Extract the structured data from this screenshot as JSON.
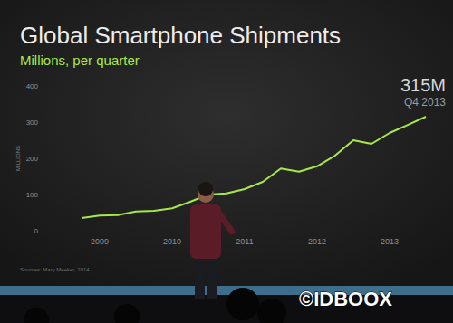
{
  "chart_data": {
    "type": "line",
    "title": "Global Smartphone Shipments",
    "subtitle": "Millions, per quarter",
    "y_label": "MILLIONS",
    "categories": [
      null,
      "2009",
      null,
      null,
      null,
      "2010",
      null,
      null,
      null,
      "2011",
      null,
      null,
      null,
      "2012",
      null,
      null,
      null,
      "2013",
      null,
      null
    ],
    "values": [
      35,
      42,
      43,
      53,
      55,
      62,
      80,
      100,
      103,
      115,
      135,
      172,
      163,
      178,
      208,
      250,
      240,
      270,
      292,
      315
    ],
    "color": "#a6e84a",
    "ylim": [
      0,
      400
    ],
    "yticks": [
      0,
      100,
      200,
      300,
      400
    ],
    "grid": false,
    "annotations": [
      "315M",
      "Q4 2013",
      "Sources: Mary Meeker, 2014",
      "©IDBOOX"
    ]
  }
}
